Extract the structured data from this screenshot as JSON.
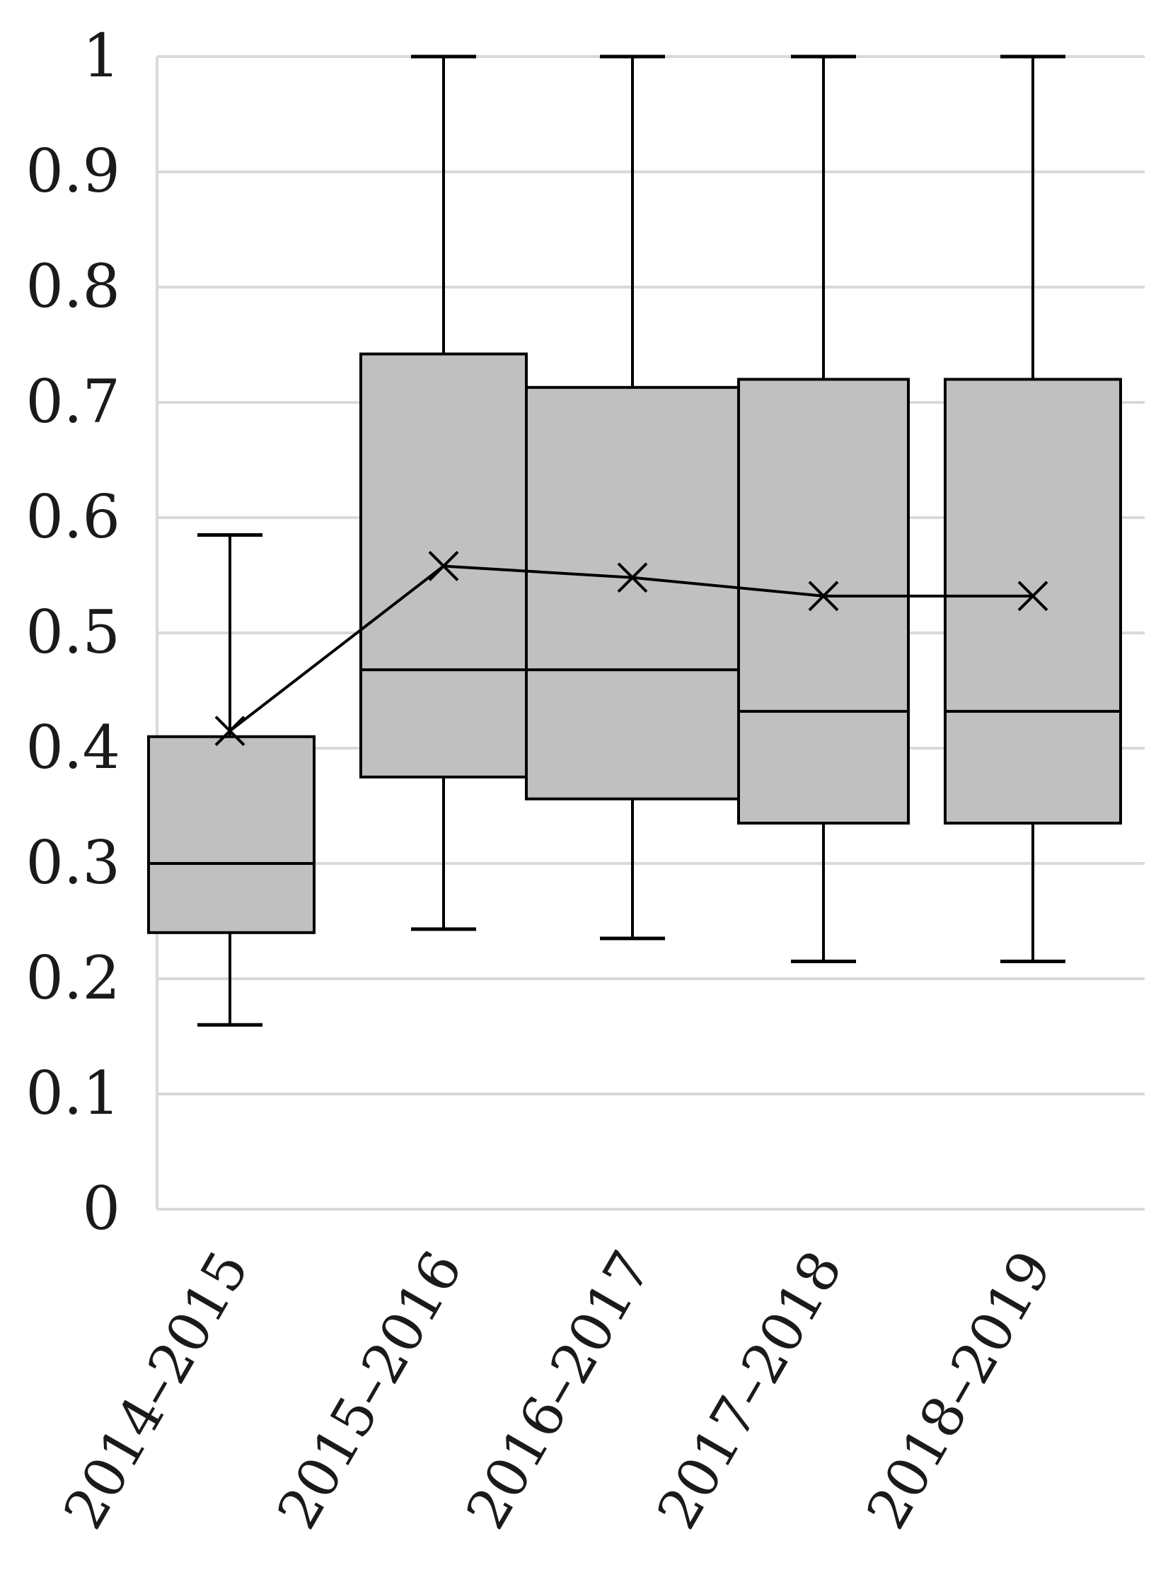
{
  "chart_data": {
    "type": "box",
    "title": "",
    "xlabel": "",
    "ylabel": "",
    "ylim": [
      0,
      1
    ],
    "yticks": [
      0,
      0.1,
      0.2,
      0.3,
      0.4,
      0.5,
      0.6,
      0.7,
      0.8,
      0.9,
      1
    ],
    "ytick_labels": [
      "0",
      "0.1",
      "0.2",
      "0.3",
      "0.4",
      "0.5",
      "0.6",
      "0.7",
      "0.8",
      "0.9",
      "1"
    ],
    "grid": true,
    "legend": "none",
    "categories": [
      "2014–2015",
      "2015–2016",
      "2016–2017",
      "2017–2018",
      "2018–2019"
    ],
    "series": [
      {
        "boxes": [
          {
            "min": 0.16,
            "q1": 0.24,
            "median": 0.3,
            "q3": 0.41,
            "max": 0.585,
            "mean": 0.415
          },
          {
            "min": 0.243,
            "q1": 0.375,
            "median": 0.468,
            "q3": 0.742,
            "max": 1.0,
            "mean": 0.558
          },
          {
            "min": 0.235,
            "q1": 0.356,
            "median": 0.468,
            "q3": 0.713,
            "max": 1.0,
            "mean": 0.548
          },
          {
            "min": 0.215,
            "q1": 0.335,
            "median": 0.432,
            "q3": 0.72,
            "max": 1.0,
            "mean": 0.532
          },
          {
            "min": 0.215,
            "q1": 0.335,
            "median": 0.432,
            "q3": 0.72,
            "max": 1.0,
            "mean": 0.532
          }
        ]
      }
    ]
  },
  "colors": {
    "box_fill": "#c0c0c0",
    "stroke": "#000000",
    "grid": "#d9d9d9",
    "text": "#1a1a1a"
  }
}
